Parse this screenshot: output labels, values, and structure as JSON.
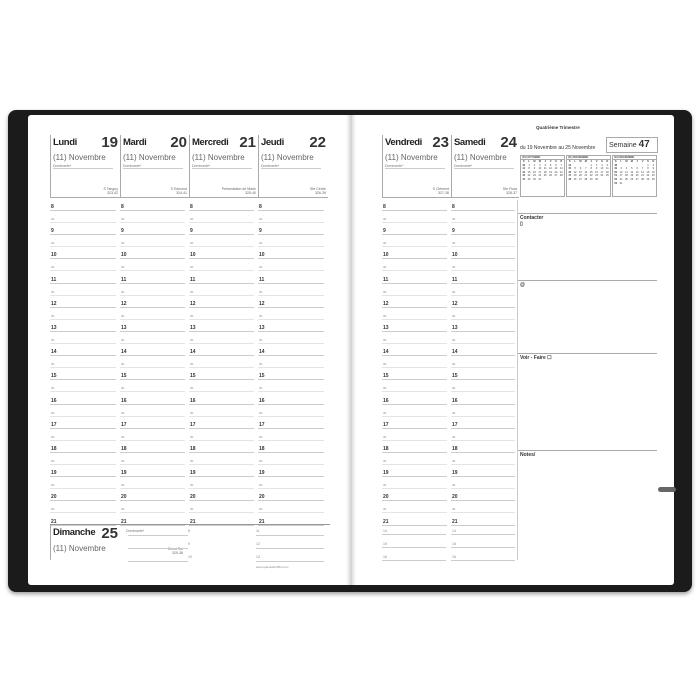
{
  "week_days": [
    {
      "name": "Lundi",
      "num": "19",
      "month": "(11) Novembre",
      "dominante": "Dominante*",
      "saint": "S Tanguy",
      "code": "323-42"
    },
    {
      "name": "Mardi",
      "num": "20",
      "month": "(11) Novembre",
      "dominante": "Dominante*",
      "saint": "S Edmond",
      "code": "324-41"
    },
    {
      "name": "Mercredi",
      "num": "21",
      "month": "(11) Novembre",
      "dominante": "Dominante*",
      "saint": "Présentation de Marie",
      "code": "325-40"
    },
    {
      "name": "Jeudi",
      "num": "22",
      "month": "(11) Novembre",
      "dominante": "Dominante*",
      "saint": "Ste Cécile",
      "code": "326-39"
    },
    {
      "name": "Vendredi",
      "num": "23",
      "month": "(11) Novembre",
      "dominante": "Dominante*",
      "saint": "S Clément",
      "code": "327-38"
    },
    {
      "name": "Samedi",
      "num": "24",
      "month": "(11) Novembre",
      "dominante": "Dominante*",
      "saint": "Ste Flora",
      "code": "328-37"
    }
  ],
  "sunday": {
    "name": "Dimanche",
    "num": "25",
    "month": "(11) Novembre",
    "dominante": "Dominante*",
    "saint": "Christ Roi",
    "code": "329-36",
    "hours": [
      "8",
      "9",
      "10",
      "11",
      "12",
      "13"
    ]
  },
  "hours": [
    "8",
    "9",
    "10",
    "11",
    "12",
    "13",
    "14",
    "15",
    "16",
    "17",
    "18",
    "19",
    "20",
    "21"
  ],
  "half_label": "30",
  "right_bottom_hours": [
    "14",
    "15",
    "16"
  ],
  "footer": "www.quovadis1954.com",
  "panel": {
    "quarter": "Quatrième Trimestre",
    "range": "du 19 Novembre au 25 Novembre",
    "week_label": "Semaine",
    "week_num": "47",
    "calendars": [
      "(10) OCTOBRE",
      "(11) NOVEMBRE",
      "(12) DECEMBRE"
    ],
    "weekday_header": [
      "S",
      "L",
      "M",
      "M",
      "J",
      "V",
      "S",
      "D"
    ],
    "sections": [
      "Contacter",
      "@",
      "Voir - Faire",
      "Notes"
    ]
  },
  "colors": {
    "cover": "#1b1b1b",
    "rule": "#cccccc"
  }
}
